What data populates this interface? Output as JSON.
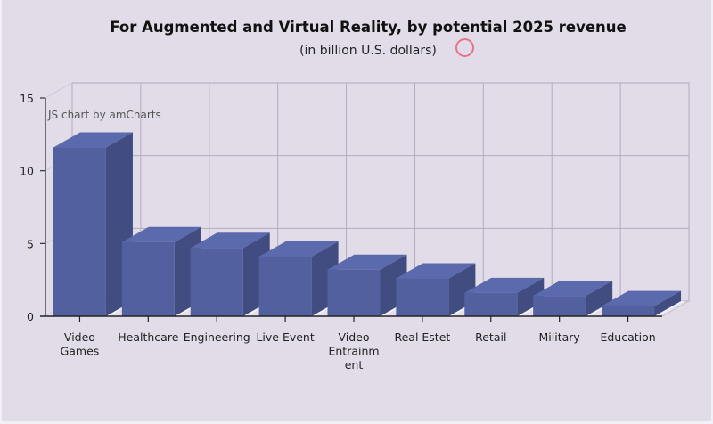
{
  "chart_data": {
    "type": "bar",
    "title": "For Augmented and Virtual Reality, by potential 2025 revenue",
    "subtitle": "(in billion U.S. dollars)",
    "xlabel": "",
    "ylabel": "",
    "categories": [
      "Video Games",
      "Healthcare",
      "Engineering",
      "Live Event",
      "Video Entrainment",
      "Real Estet",
      "Retail",
      "Military",
      "Education"
    ],
    "category_label_lines": [
      [
        "Video",
        "Games"
      ],
      [
        "Healthcare"
      ],
      [
        "Engineering"
      ],
      [
        "Live Event"
      ],
      [
        "Video",
        "Entrainm",
        "ent"
      ],
      [
        "Real Estet"
      ],
      [
        "Retail"
      ],
      [
        "Military"
      ],
      [
        "Education"
      ]
    ],
    "values": [
      11.6,
      5.1,
      4.7,
      4.1,
      3.2,
      2.6,
      1.6,
      1.4,
      0.7
    ],
    "ylim": [
      0,
      15
    ],
    "yticks": [
      0,
      5,
      10,
      15
    ],
    "grid": true,
    "style": "3d-column",
    "bar_color": "#5360a0",
    "bar_top_color": "#5b69ad",
    "bar_side_color": "#414c81",
    "credit": "JS chart by amCharts"
  },
  "cursor_indicator_color": "#e7738a"
}
